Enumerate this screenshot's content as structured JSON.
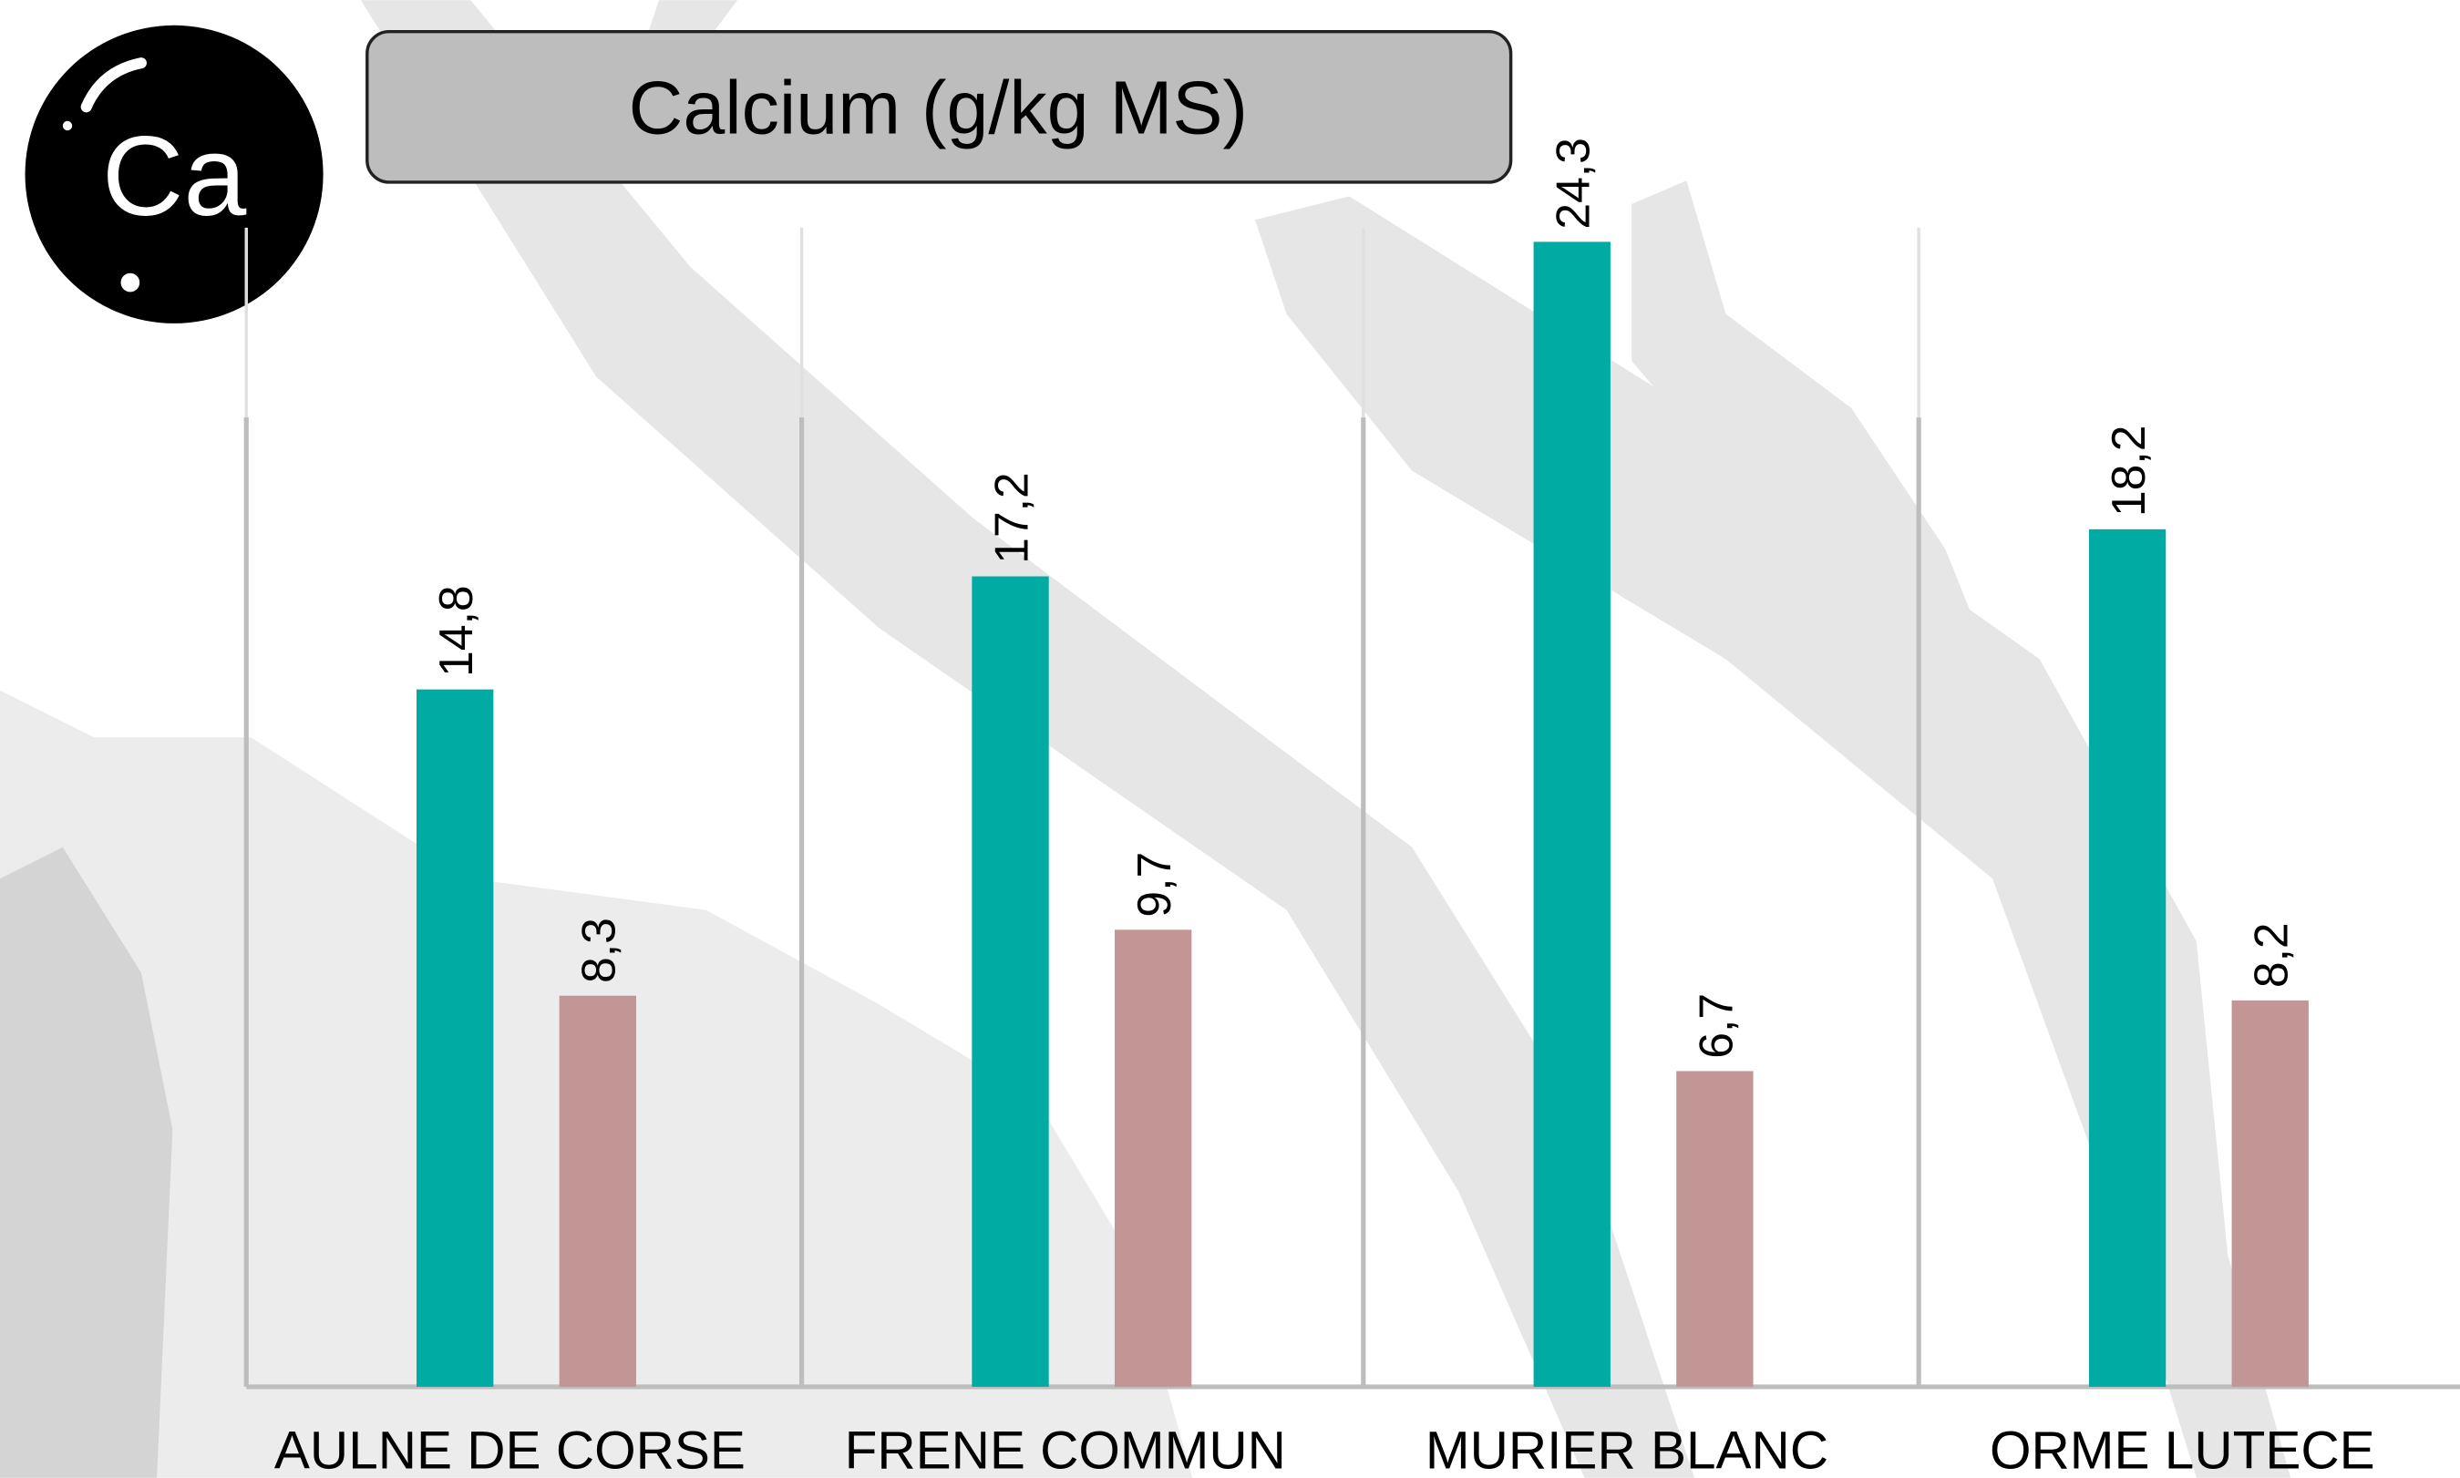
{
  "icon": "Ca",
  "chart_data": {
    "type": "bar",
    "title": "Calcium (g/kg MS)",
    "categories": [
      "AULNE DE CORSE",
      "FRENE COMMUN",
      "MURIER BLANC",
      "ORME LUTECE"
    ],
    "series": [
      {
        "color": "#00aba4",
        "values": [
          14.8,
          17.2,
          24.3,
          18.2
        ],
        "value_labels": [
          "14,8",
          "17,2",
          "24,3",
          "18,2"
        ]
      },
      {
        "color": "#c29695",
        "values": [
          8.3,
          9.7,
          6.7,
          8.2
        ],
        "value_labels": [
          "8,3",
          "9,7",
          "6,7",
          "8,2"
        ]
      }
    ],
    "ylim": [
      0,
      25
    ]
  }
}
